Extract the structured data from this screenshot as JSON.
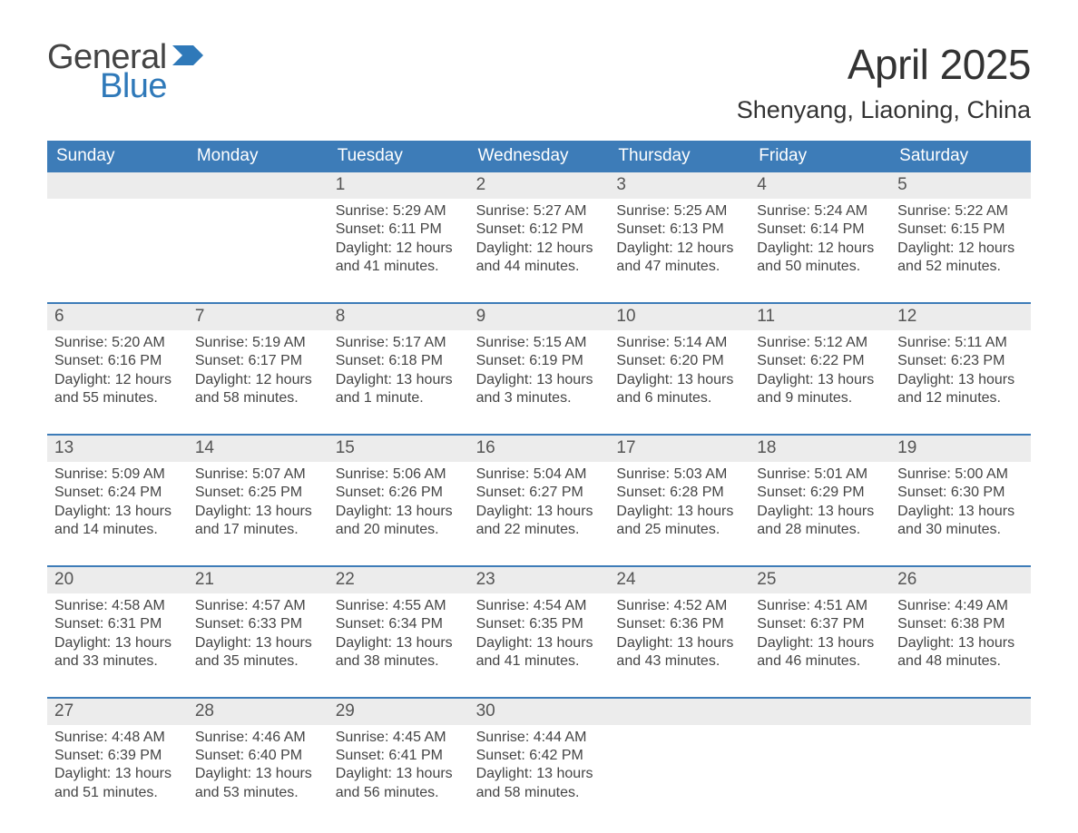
{
  "logo": {
    "text1": "General",
    "text2": "Blue",
    "flag_color": "#2f79b9"
  },
  "title": "April 2025",
  "location": "Shenyang, Liaoning, China",
  "colors": {
    "header_bg": "#3d7cb8",
    "header_text": "#ffffff",
    "daynum_bg": "#ececec",
    "week_border": "#3d7cb8",
    "body_text": "#444444",
    "page_bg": "#ffffff",
    "brand_blue": "#2f79b9"
  },
  "fonts": {
    "title_size_pt": 34,
    "location_size_pt": 20,
    "dow_size_pt": 14,
    "daynum_size_pt": 14,
    "body_size_pt": 12
  },
  "days_of_week": [
    "Sunday",
    "Monday",
    "Tuesday",
    "Wednesday",
    "Thursday",
    "Friday",
    "Saturday"
  ],
  "weeks": [
    [
      {
        "n": "",
        "sunrise": "",
        "sunset": "",
        "daylight": ""
      },
      {
        "n": "",
        "sunrise": "",
        "sunset": "",
        "daylight": ""
      },
      {
        "n": "1",
        "sunrise": "Sunrise: 5:29 AM",
        "sunset": "Sunset: 6:11 PM",
        "daylight": "Daylight: 12 hours and 41 minutes."
      },
      {
        "n": "2",
        "sunrise": "Sunrise: 5:27 AM",
        "sunset": "Sunset: 6:12 PM",
        "daylight": "Daylight: 12 hours and 44 minutes."
      },
      {
        "n": "3",
        "sunrise": "Sunrise: 5:25 AM",
        "sunset": "Sunset: 6:13 PM",
        "daylight": "Daylight: 12 hours and 47 minutes."
      },
      {
        "n": "4",
        "sunrise": "Sunrise: 5:24 AM",
        "sunset": "Sunset: 6:14 PM",
        "daylight": "Daylight: 12 hours and 50 minutes."
      },
      {
        "n": "5",
        "sunrise": "Sunrise: 5:22 AM",
        "sunset": "Sunset: 6:15 PM",
        "daylight": "Daylight: 12 hours and 52 minutes."
      }
    ],
    [
      {
        "n": "6",
        "sunrise": "Sunrise: 5:20 AM",
        "sunset": "Sunset: 6:16 PM",
        "daylight": "Daylight: 12 hours and 55 minutes."
      },
      {
        "n": "7",
        "sunrise": "Sunrise: 5:19 AM",
        "sunset": "Sunset: 6:17 PM",
        "daylight": "Daylight: 12 hours and 58 minutes."
      },
      {
        "n": "8",
        "sunrise": "Sunrise: 5:17 AM",
        "sunset": "Sunset: 6:18 PM",
        "daylight": "Daylight: 13 hours and 1 minute."
      },
      {
        "n": "9",
        "sunrise": "Sunrise: 5:15 AM",
        "sunset": "Sunset: 6:19 PM",
        "daylight": "Daylight: 13 hours and 3 minutes."
      },
      {
        "n": "10",
        "sunrise": "Sunrise: 5:14 AM",
        "sunset": "Sunset: 6:20 PM",
        "daylight": "Daylight: 13 hours and 6 minutes."
      },
      {
        "n": "11",
        "sunrise": "Sunrise: 5:12 AM",
        "sunset": "Sunset: 6:22 PM",
        "daylight": "Daylight: 13 hours and 9 minutes."
      },
      {
        "n": "12",
        "sunrise": "Sunrise: 5:11 AM",
        "sunset": "Sunset: 6:23 PM",
        "daylight": "Daylight: 13 hours and 12 minutes."
      }
    ],
    [
      {
        "n": "13",
        "sunrise": "Sunrise: 5:09 AM",
        "sunset": "Sunset: 6:24 PM",
        "daylight": "Daylight: 13 hours and 14 minutes."
      },
      {
        "n": "14",
        "sunrise": "Sunrise: 5:07 AM",
        "sunset": "Sunset: 6:25 PM",
        "daylight": "Daylight: 13 hours and 17 minutes."
      },
      {
        "n": "15",
        "sunrise": "Sunrise: 5:06 AM",
        "sunset": "Sunset: 6:26 PM",
        "daylight": "Daylight: 13 hours and 20 minutes."
      },
      {
        "n": "16",
        "sunrise": "Sunrise: 5:04 AM",
        "sunset": "Sunset: 6:27 PM",
        "daylight": "Daylight: 13 hours and 22 minutes."
      },
      {
        "n": "17",
        "sunrise": "Sunrise: 5:03 AM",
        "sunset": "Sunset: 6:28 PM",
        "daylight": "Daylight: 13 hours and 25 minutes."
      },
      {
        "n": "18",
        "sunrise": "Sunrise: 5:01 AM",
        "sunset": "Sunset: 6:29 PM",
        "daylight": "Daylight: 13 hours and 28 minutes."
      },
      {
        "n": "19",
        "sunrise": "Sunrise: 5:00 AM",
        "sunset": "Sunset: 6:30 PM",
        "daylight": "Daylight: 13 hours and 30 minutes."
      }
    ],
    [
      {
        "n": "20",
        "sunrise": "Sunrise: 4:58 AM",
        "sunset": "Sunset: 6:31 PM",
        "daylight": "Daylight: 13 hours and 33 minutes."
      },
      {
        "n": "21",
        "sunrise": "Sunrise: 4:57 AM",
        "sunset": "Sunset: 6:33 PM",
        "daylight": "Daylight: 13 hours and 35 minutes."
      },
      {
        "n": "22",
        "sunrise": "Sunrise: 4:55 AM",
        "sunset": "Sunset: 6:34 PM",
        "daylight": "Daylight: 13 hours and 38 minutes."
      },
      {
        "n": "23",
        "sunrise": "Sunrise: 4:54 AM",
        "sunset": "Sunset: 6:35 PM",
        "daylight": "Daylight: 13 hours and 41 minutes."
      },
      {
        "n": "24",
        "sunrise": "Sunrise: 4:52 AM",
        "sunset": "Sunset: 6:36 PM",
        "daylight": "Daylight: 13 hours and 43 minutes."
      },
      {
        "n": "25",
        "sunrise": "Sunrise: 4:51 AM",
        "sunset": "Sunset: 6:37 PM",
        "daylight": "Daylight: 13 hours and 46 minutes."
      },
      {
        "n": "26",
        "sunrise": "Sunrise: 4:49 AM",
        "sunset": "Sunset: 6:38 PM",
        "daylight": "Daylight: 13 hours and 48 minutes."
      }
    ],
    [
      {
        "n": "27",
        "sunrise": "Sunrise: 4:48 AM",
        "sunset": "Sunset: 6:39 PM",
        "daylight": "Daylight: 13 hours and 51 minutes."
      },
      {
        "n": "28",
        "sunrise": "Sunrise: 4:46 AM",
        "sunset": "Sunset: 6:40 PM",
        "daylight": "Daylight: 13 hours and 53 minutes."
      },
      {
        "n": "29",
        "sunrise": "Sunrise: 4:45 AM",
        "sunset": "Sunset: 6:41 PM",
        "daylight": "Daylight: 13 hours and 56 minutes."
      },
      {
        "n": "30",
        "sunrise": "Sunrise: 4:44 AM",
        "sunset": "Sunset: 6:42 PM",
        "daylight": "Daylight: 13 hours and 58 minutes."
      },
      {
        "n": "",
        "sunrise": "",
        "sunset": "",
        "daylight": ""
      },
      {
        "n": "",
        "sunrise": "",
        "sunset": "",
        "daylight": ""
      },
      {
        "n": "",
        "sunrise": "",
        "sunset": "",
        "daylight": ""
      }
    ]
  ]
}
